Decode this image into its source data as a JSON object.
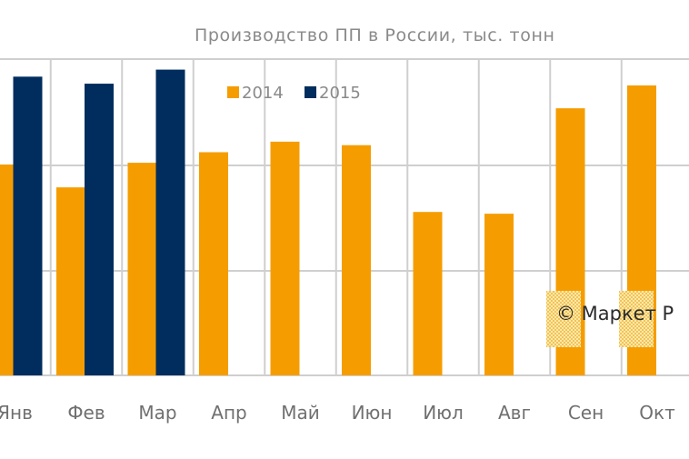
{
  "chart_data": {
    "type": "bar",
    "title": "Производство ПП в России, тыс. тонн",
    "categories": [
      "Янв",
      "Фев",
      "Мар",
      "Апр",
      "Май",
      "Июн",
      "Июл",
      "Авг",
      "Сен",
      "Окт"
    ],
    "series": [
      {
        "name": "2014",
        "color": "#F59D00",
        "values": [
          120,
          107,
          121,
          127,
          133,
          131,
          93,
          92,
          152,
          165
        ]
      },
      {
        "name": "2015",
        "color": "#002D5E",
        "values": [
          170,
          166,
          174,
          null,
          null,
          null,
          null,
          null,
          null,
          null
        ]
      }
    ],
    "ylim": [
      0,
      180
    ],
    "grid": true,
    "legend_position": "top-center"
  },
  "watermark": {
    "text": "© Маркет Р"
  }
}
